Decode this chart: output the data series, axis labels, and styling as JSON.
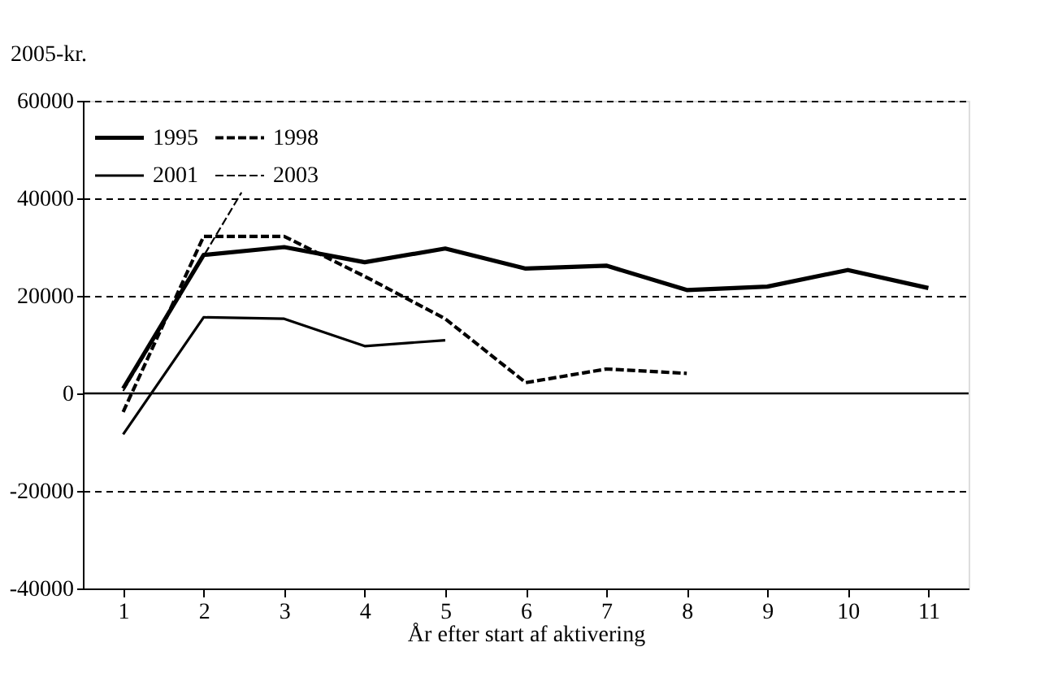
{
  "chart_data": {
    "type": "line",
    "xlabel": "År efter start af aktivering",
    "ylabel": "2005-kr.",
    "x": [
      1,
      2,
      3,
      4,
      5,
      6,
      7,
      8,
      9,
      10,
      11
    ],
    "xlim": [
      0.5,
      11.5
    ],
    "xticks": [
      1,
      2,
      3,
      4,
      5,
      6,
      7,
      8,
      9,
      10,
      11
    ],
    "ylim": [
      -40000,
      60000
    ],
    "yticks": [
      {
        "value": -40000,
        "label": "-40000"
      },
      {
        "value": -20000,
        "label": "-20000"
      },
      0,
      {
        "value": 20000,
        "label": "20000"
      },
      {
        "value": 40000,
        "label": "40000"
      },
      {
        "value": 60000,
        "label": "60000"
      }
    ],
    "grid": "y",
    "legend": "top left",
    "marker": "none",
    "ref_lines": [
      {
        "axis": "y",
        "value": 0,
        "color": "#000000",
        "line_style": "solid"
      }
    ],
    "series": [
      {
        "name": "1995",
        "color": "#000000",
        "line_style": "solid",
        "values": [
          1000,
          28400,
          30000,
          26900,
          29700,
          25600,
          26200,
          21200,
          21900,
          25300,
          21600
        ]
      },
      {
        "name": "1998",
        "color": "#000000",
        "line_style": "dashed",
        "values": [
          -3800,
          32200,
          32200,
          24000,
          15300,
          2200,
          5000,
          4100,
          null,
          null,
          null
        ]
      },
      {
        "name": "2001",
        "color": "#000000",
        "line_style": "solid",
        "values": [
          -8400,
          15600,
          15300,
          9700,
          10900,
          null,
          null,
          null,
          null,
          null,
          null
        ]
      },
      {
        "name": "2003",
        "color": "#000000",
        "line_style": "dashed",
        "x": [
          1,
          2.47
        ],
        "values": [
          500,
          41200
        ]
      }
    ]
  }
}
